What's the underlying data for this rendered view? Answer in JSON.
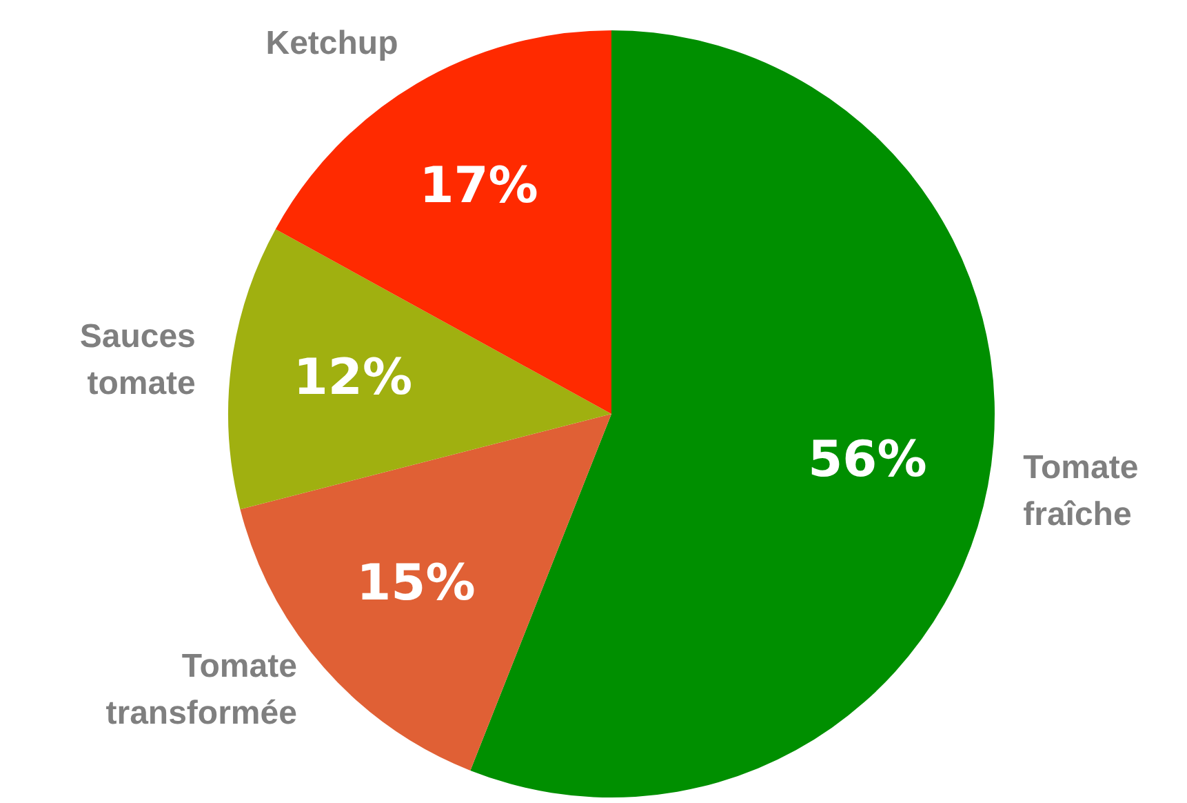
{
  "chart_data": {
    "type": "pie",
    "categories": [
      "Tomate fraîche",
      "Tomate transformée",
      "Sauces tomate",
      "Ketchup"
    ],
    "values": [
      56,
      15,
      12,
      17
    ],
    "value_labels": [
      "56%",
      "15%",
      "12%",
      "17%"
    ],
    "colors": [
      "#008f00",
      "#e06035",
      "#a0b010",
      "#ff2a00"
    ],
    "legend": false
  }
}
